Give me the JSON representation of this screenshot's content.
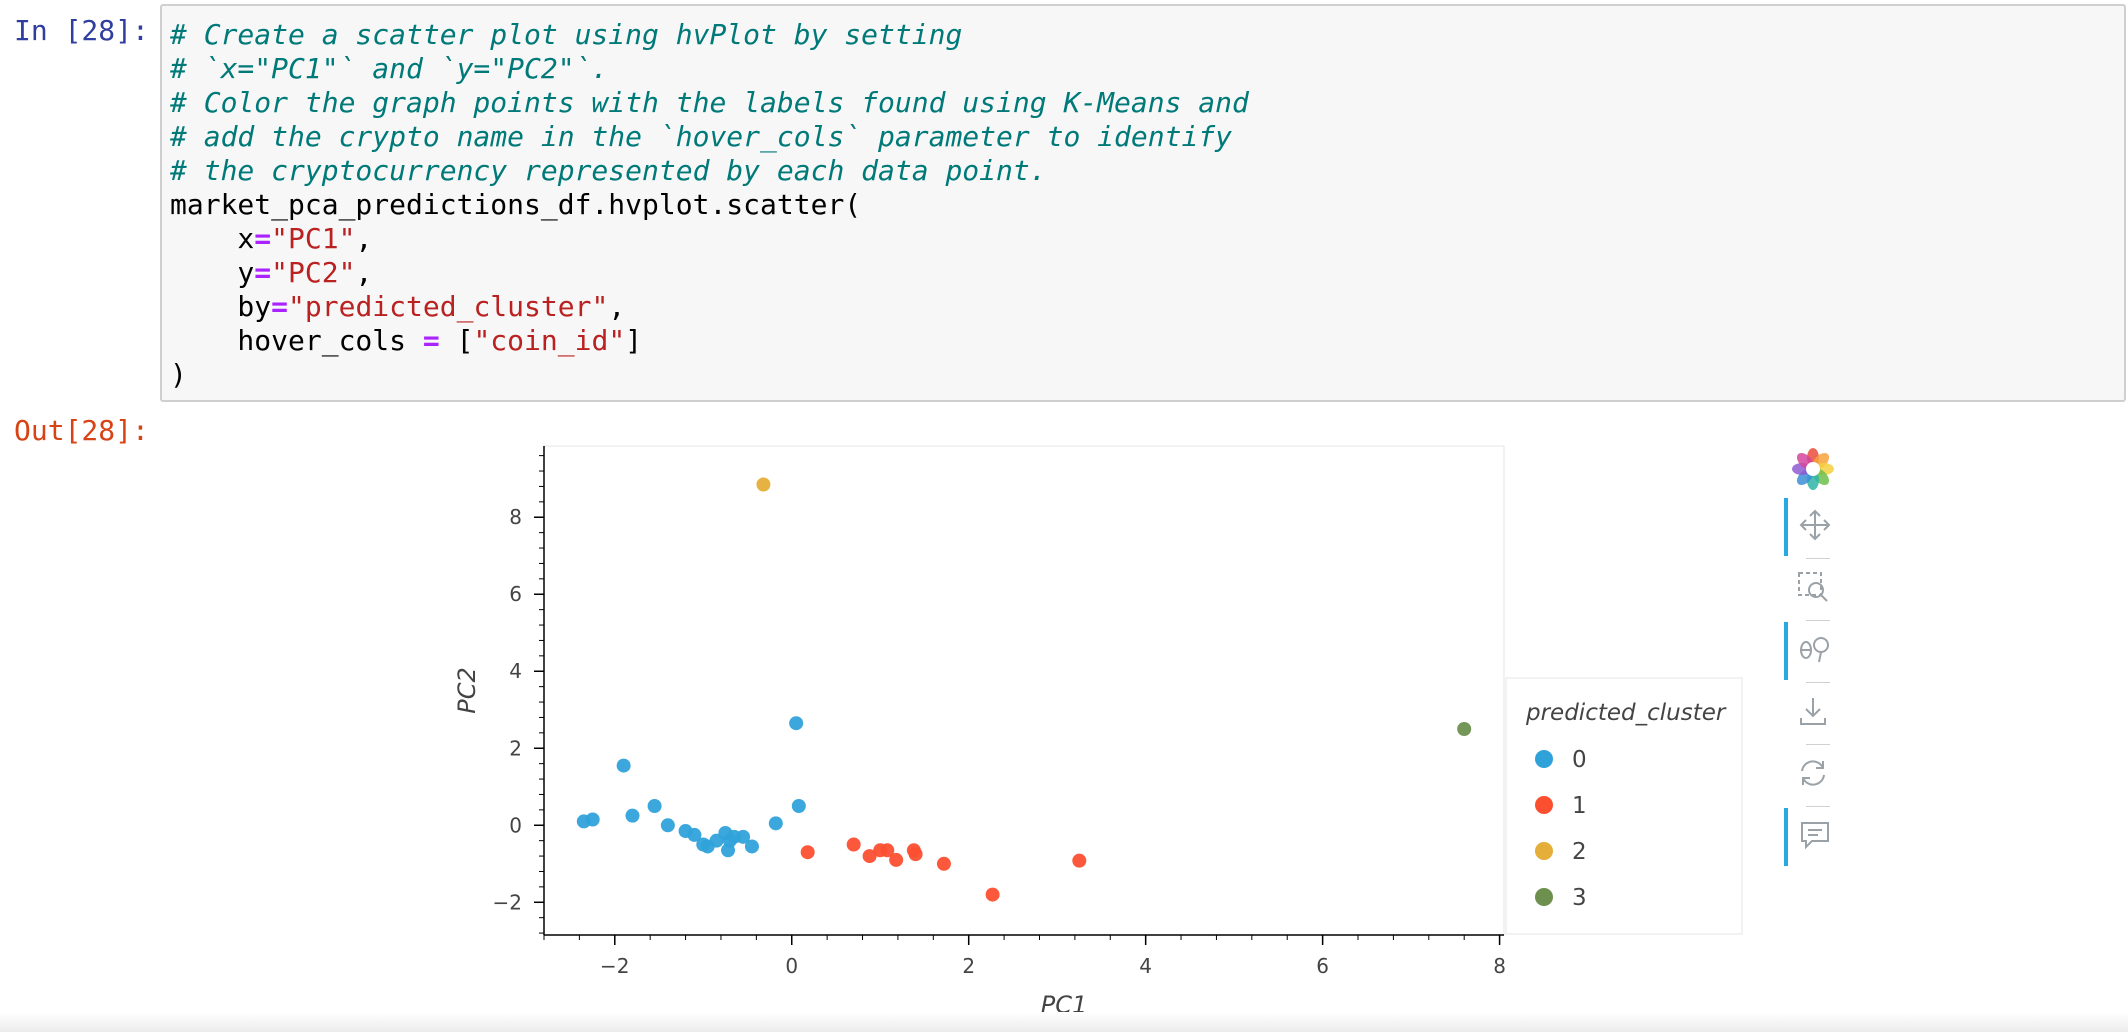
{
  "notebook": {
    "in_prompt": "In [28]:",
    "out_prompt": "Out[28]:",
    "code_lines": [
      [
        {
          "t": "# Create a scatter plot using hvPlot by setting",
          "k": "comment"
        }
      ],
      [
        {
          "t": "# `x=\"PC1\"` and `y=\"PC2\"`.",
          "k": "comment"
        }
      ],
      [
        {
          "t": "# Color the graph points with the labels found using K-Means and",
          "k": "comment"
        }
      ],
      [
        {
          "t": "# add the crypto name in the `hover_cols` parameter to identify",
          "k": "comment"
        }
      ],
      [
        {
          "t": "# the cryptocurrency represented by each data point.",
          "k": "comment"
        }
      ],
      [
        {
          "t": "market_pca_predictions_df.hvplot.scatter(",
          "k": "plain"
        }
      ],
      [
        {
          "t": "    x",
          "k": "plain"
        },
        {
          "t": "=",
          "k": "op"
        },
        {
          "t": "\"PC1\"",
          "k": "str"
        },
        {
          "t": ",",
          "k": "plain"
        }
      ],
      [
        {
          "t": "    y",
          "k": "plain"
        },
        {
          "t": "=",
          "k": "op"
        },
        {
          "t": "\"PC2\"",
          "k": "str"
        },
        {
          "t": ",",
          "k": "plain"
        }
      ],
      [
        {
          "t": "    by",
          "k": "plain"
        },
        {
          "t": "=",
          "k": "op"
        },
        {
          "t": "\"predicted_cluster\"",
          "k": "str"
        },
        {
          "t": ",",
          "k": "plain"
        }
      ],
      [
        {
          "t": "    hover_cols ",
          "k": "plain"
        },
        {
          "t": "=",
          "k": "op"
        },
        {
          "t": " [",
          "k": "plain"
        },
        {
          "t": "\"coin_id\"",
          "k": "str"
        },
        {
          "t": "]",
          "k": "plain"
        }
      ],
      [
        {
          "t": ")",
          "k": "plain"
        }
      ]
    ]
  },
  "toolbar": {
    "tools": [
      {
        "name": "pan-tool",
        "icon": "move-arrows-icon",
        "active": true
      },
      {
        "name": "box-zoom-tool",
        "icon": "box-zoom-icon",
        "active": false
      },
      {
        "name": "wheel-zoom-tool",
        "icon": "wheel-zoom-icon",
        "active": true
      },
      {
        "name": "save-tool",
        "icon": "download-icon",
        "active": false
      },
      {
        "name": "reset-tool",
        "icon": "reset-icon",
        "active": false
      },
      {
        "name": "hover-tool",
        "icon": "comment-icon",
        "active": true
      }
    ],
    "logo_icon": "bokeh-logo-icon"
  },
  "chart_data": {
    "type": "scatter",
    "xlabel": "PC1",
    "ylabel": "PC2",
    "xlim": [
      -2.8,
      8.05
    ],
    "ylim": [
      -2.85,
      9.85
    ],
    "xticks": [
      -2,
      0,
      2,
      4,
      6,
      8
    ],
    "yticks": [
      -2,
      0,
      2,
      4,
      6,
      8
    ],
    "xtick_labels": [
      "−2",
      "0",
      "2",
      "4",
      "6",
      "8"
    ],
    "ytick_labels": [
      "−2",
      "0",
      "2",
      "4",
      "6",
      "8"
    ],
    "grid": false,
    "legend": {
      "title": "predicted_cluster",
      "placement": "right",
      "entries": [
        "0",
        "1",
        "2",
        "3"
      ]
    },
    "series": [
      {
        "name": "0",
        "color": "#30a2da",
        "points": [
          [
            -2.35,
            0.1
          ],
          [
            -2.25,
            0.15
          ],
          [
            -1.9,
            1.55
          ],
          [
            -1.8,
            0.25
          ],
          [
            -1.55,
            0.5
          ],
          [
            -1.4,
            0.0
          ],
          [
            -1.2,
            -0.15
          ],
          [
            -1.1,
            -0.25
          ],
          [
            -1.0,
            -0.5
          ],
          [
            -0.95,
            -0.55
          ],
          [
            -0.85,
            -0.4
          ],
          [
            -0.75,
            -0.2
          ],
          [
            -0.72,
            -0.65
          ],
          [
            -0.7,
            -0.4
          ],
          [
            -0.65,
            -0.3
          ],
          [
            -0.55,
            -0.3
          ],
          [
            -0.45,
            -0.55
          ],
          [
            -0.18,
            0.05
          ],
          [
            0.05,
            2.65
          ],
          [
            0.08,
            0.5
          ]
        ]
      },
      {
        "name": "1",
        "color": "#fc4f30",
        "points": [
          [
            0.18,
            -0.7
          ],
          [
            0.7,
            -0.5
          ],
          [
            0.88,
            -0.8
          ],
          [
            1.0,
            -0.65
          ],
          [
            1.08,
            -0.65
          ],
          [
            1.18,
            -0.9
          ],
          [
            1.38,
            -0.65
          ],
          [
            1.4,
            -0.75
          ],
          [
            1.72,
            -1.0
          ],
          [
            2.27,
            -1.8
          ],
          [
            3.25,
            -0.92
          ]
        ]
      },
      {
        "name": "2",
        "color": "#e5ae38",
        "points": [
          [
            -0.32,
            8.85
          ]
        ]
      },
      {
        "name": "3",
        "color": "#6d904f",
        "points": [
          [
            7.6,
            2.5
          ]
        ]
      }
    ]
  }
}
